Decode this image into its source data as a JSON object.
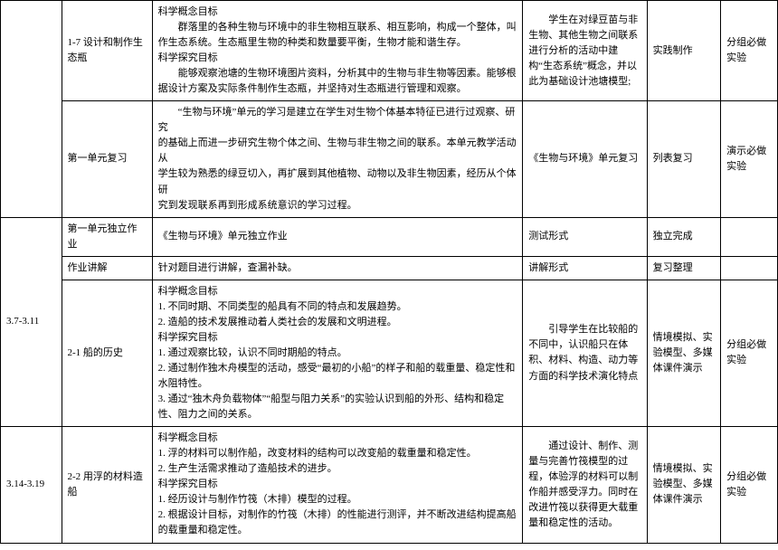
{
  "table": {
    "rows": [
      {
        "date": "",
        "topic": "1-7 设计和制作生态瓶",
        "goal": "科学概念目标\n　　群落里的各种生物与环境中的非生物相互联系、相互影响，构成一个整体，叫作生态系统。生态瓶里生物的种类和数量要平衡，生物才能和谐生存。\n科学探究目标\n　　能够观察池塘的生物环境图片资料，分析其中的生物与非生物等因素。能够根据设计方案及实际条件制作生态瓶，并坚持对生态瓶进行管理和观察。",
        "activity": "　　学生在对绿豆苗与非生物、其他生物之间联系进行分析的活动中建构“生态系统”概念，并以此为基础设计池塘模型;",
        "method": "实践制作",
        "exp": "分组必做实验"
      },
      {
        "date": "",
        "topic": "第一单元复习",
        "goal": "　　“生物与环境”单元的学习是建立在学生对生物个体基本特征已进行过观察、研究\n的基础上而进一步研究生物个体之间、生物与非生物之间的联系。本单元教学活动从\n学生较为熟悉的绿豆切入，再扩展到其他植物、动物以及非生物因素，经历从个体研\n究到发现联系再到形成系统意识的学习过程。",
        "activity": "《生物与环境》单元复习",
        "method": "列表复习",
        "exp": "演示必做实验"
      },
      {
        "date": "3.7-3.11",
        "dateRowspan": 4,
        "topic": "第一单元独立作业",
        "goal": "《生物与环境》单元独立作业",
        "activity": "测试形式",
        "method": "独立完成",
        "exp": ""
      },
      {
        "topic": "作业讲解",
        "goal": "针对题目进行讲解，查漏补缺。",
        "activity": "讲解形式",
        "method": "复习整理",
        "exp": ""
      },
      {
        "topic": "2-1 船的历史",
        "goal": "科学概念目标\n1. 不同时期、不同类型的船具有不同的特点和发展趋势。\n2. 造船的技术发展推动着人类社会的发展和文明进程。\n科学探究目标\n1. 通过观察比较，认识不同时期船的特点。\n2. 通过制作独木舟模型的活动，感受“最初的小船”的样子和船的载重量、稳定性和水阻特性。\n3. 通过“独木舟负载物体”“船型与阻力关系”的实验认识到船的外形、结构和稳定性、阻力之间的关系。",
        "activity": "　　引导学生在比较船的不同中，认识船只在体积、材料、构造、动力等方面的科学技术演化特点",
        "method": "情境模拟、实验模型、多媒体课件演示",
        "exp": "分组必做实验"
      },
      {
        "date": "3.14-3.19",
        "topic": "2-2 用浮的材料造船",
        "goal": "科学概念目标\n1. 浮的材料可以制作船，改变材料的结构可以改变船的载重量和稳定性。\n2. 生产生活需求推动了造船技术的进步。\n科学探究目标\n1. 经历设计与制作竹筏（木排）模型的过程。\n2. 根据设计目标，对制作的竹筏（木排）的性能进行测评，并不断改进结构提高船的载重量和稳定性。",
        "activity": "　　通过设计、制作、测量与完善竹筏模型的过程，体验浮的材料可以制作船并感受浮力。同时在改进竹筏以获得更大载重量和稳定性的活动。",
        "method": "情境模拟、实验模型、多媒体课件演示",
        "exp": "分组必做实验"
      }
    ]
  }
}
